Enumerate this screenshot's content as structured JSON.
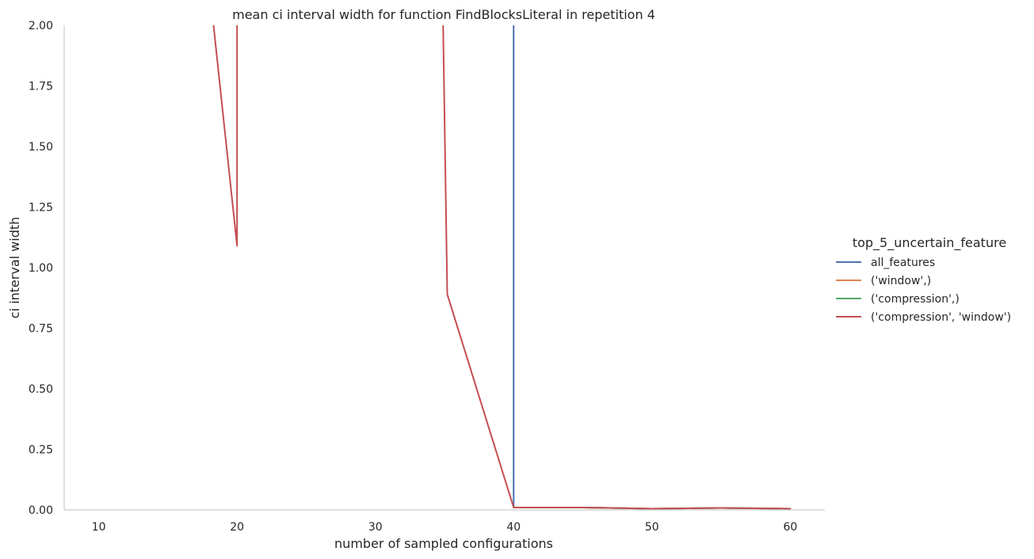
{
  "chart_data": {
    "type": "line",
    "title": "mean ci interval width for function FindBlocksLiteral in repetition 4",
    "xlabel": "number of sampled configurations",
    "ylabel": "ci interval width",
    "xlim": [
      7.5,
      62.5
    ],
    "ylim": [
      0,
      2
    ],
    "xticks": [
      10,
      20,
      30,
      40,
      50,
      60
    ],
    "yticks": [
      0.0,
      0.25,
      0.5,
      0.75,
      1.0,
      1.25,
      1.5,
      1.75,
      2.0
    ],
    "ytick_labels": [
      "0.00",
      "0.25",
      "0.50",
      "0.75",
      "1.00",
      "1.25",
      "1.50",
      "1.75",
      "2.00"
    ],
    "grid": false,
    "legend": {
      "title": "top_5_uncertain_feature",
      "placement": "right"
    },
    "series": [
      {
        "name": "all_features",
        "color": "#4c72b0",
        "x": [
          40,
          40,
          45,
          50,
          55,
          60
        ],
        "y": [
          2.0,
          0.01,
          0.01,
          0.005,
          0.008,
          0.005
        ]
      },
      {
        "name": "('window',)",
        "color": "#dd8452",
        "x": [
          40,
          45,
          50,
          55,
          60
        ],
        "y": [
          0.01,
          0.01,
          0.005,
          0.008,
          0.005
        ]
      },
      {
        "name": "('compression',)",
        "color": "#55a868",
        "x": [
          40,
          45,
          50,
          55,
          60
        ],
        "y": [
          0.01,
          0.01,
          0.005,
          0.008,
          0.005
        ]
      },
      {
        "name": "('compression', 'window')",
        "color": "#c44e52",
        "segments": [
          {
            "x": [
              18.3,
              20,
              20
            ],
            "y": [
              2.0,
              1.09,
              2.0
            ]
          },
          {
            "x": [
              34.9,
              35.2,
              40,
              45,
              50,
              55,
              60
            ],
            "y": [
              2.0,
              0.89,
              0.01,
              0.01,
              0.005,
              0.008,
              0.005
            ]
          }
        ]
      }
    ]
  }
}
